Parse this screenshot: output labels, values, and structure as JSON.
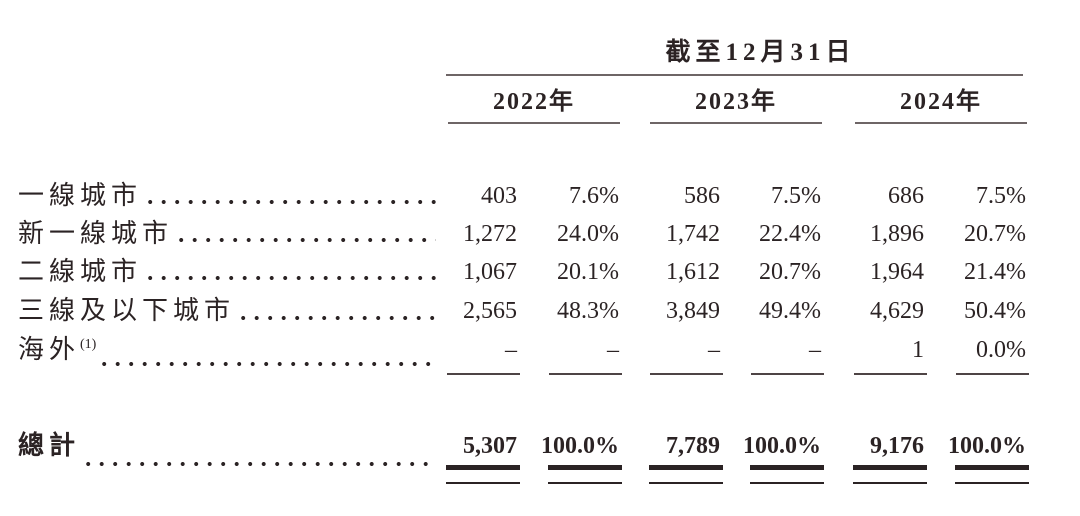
{
  "table": {
    "title": "截至12月31日",
    "columns": [
      {
        "label": "2022年"
      },
      {
        "label": "2023年"
      },
      {
        "label": "2024年"
      }
    ],
    "rows": [
      {
        "label": "一線城市",
        "values": [
          "403",
          "7.6%",
          "586",
          "7.5%",
          "686",
          "7.5%"
        ]
      },
      {
        "label": "新一線城市",
        "values": [
          "1,272",
          "24.0%",
          "1,742",
          "22.4%",
          "1,896",
          "20.7%"
        ]
      },
      {
        "label": "二線城市",
        "values": [
          "1,067",
          "20.1%",
          "1,612",
          "20.7%",
          "1,964",
          "21.4%"
        ]
      },
      {
        "label": "三線及以下城市",
        "values": [
          "2,565",
          "48.3%",
          "3,849",
          "49.4%",
          "4,629",
          "50.4%"
        ]
      },
      {
        "label": "海外",
        "footnote": "(1)",
        "values": [
          "–",
          "–",
          "–",
          "–",
          "1",
          "0.0%"
        ]
      }
    ],
    "total": {
      "label": "總計",
      "values": [
        "5,307",
        "100.0%",
        "7,789",
        "100.0%",
        "9,176",
        "100.0%"
      ]
    }
  },
  "colors": {
    "ink": "#2b2324",
    "rule_gray": "#6e6566",
    "rule_dark": "#4e4445",
    "paper": "#ffffff"
  }
}
